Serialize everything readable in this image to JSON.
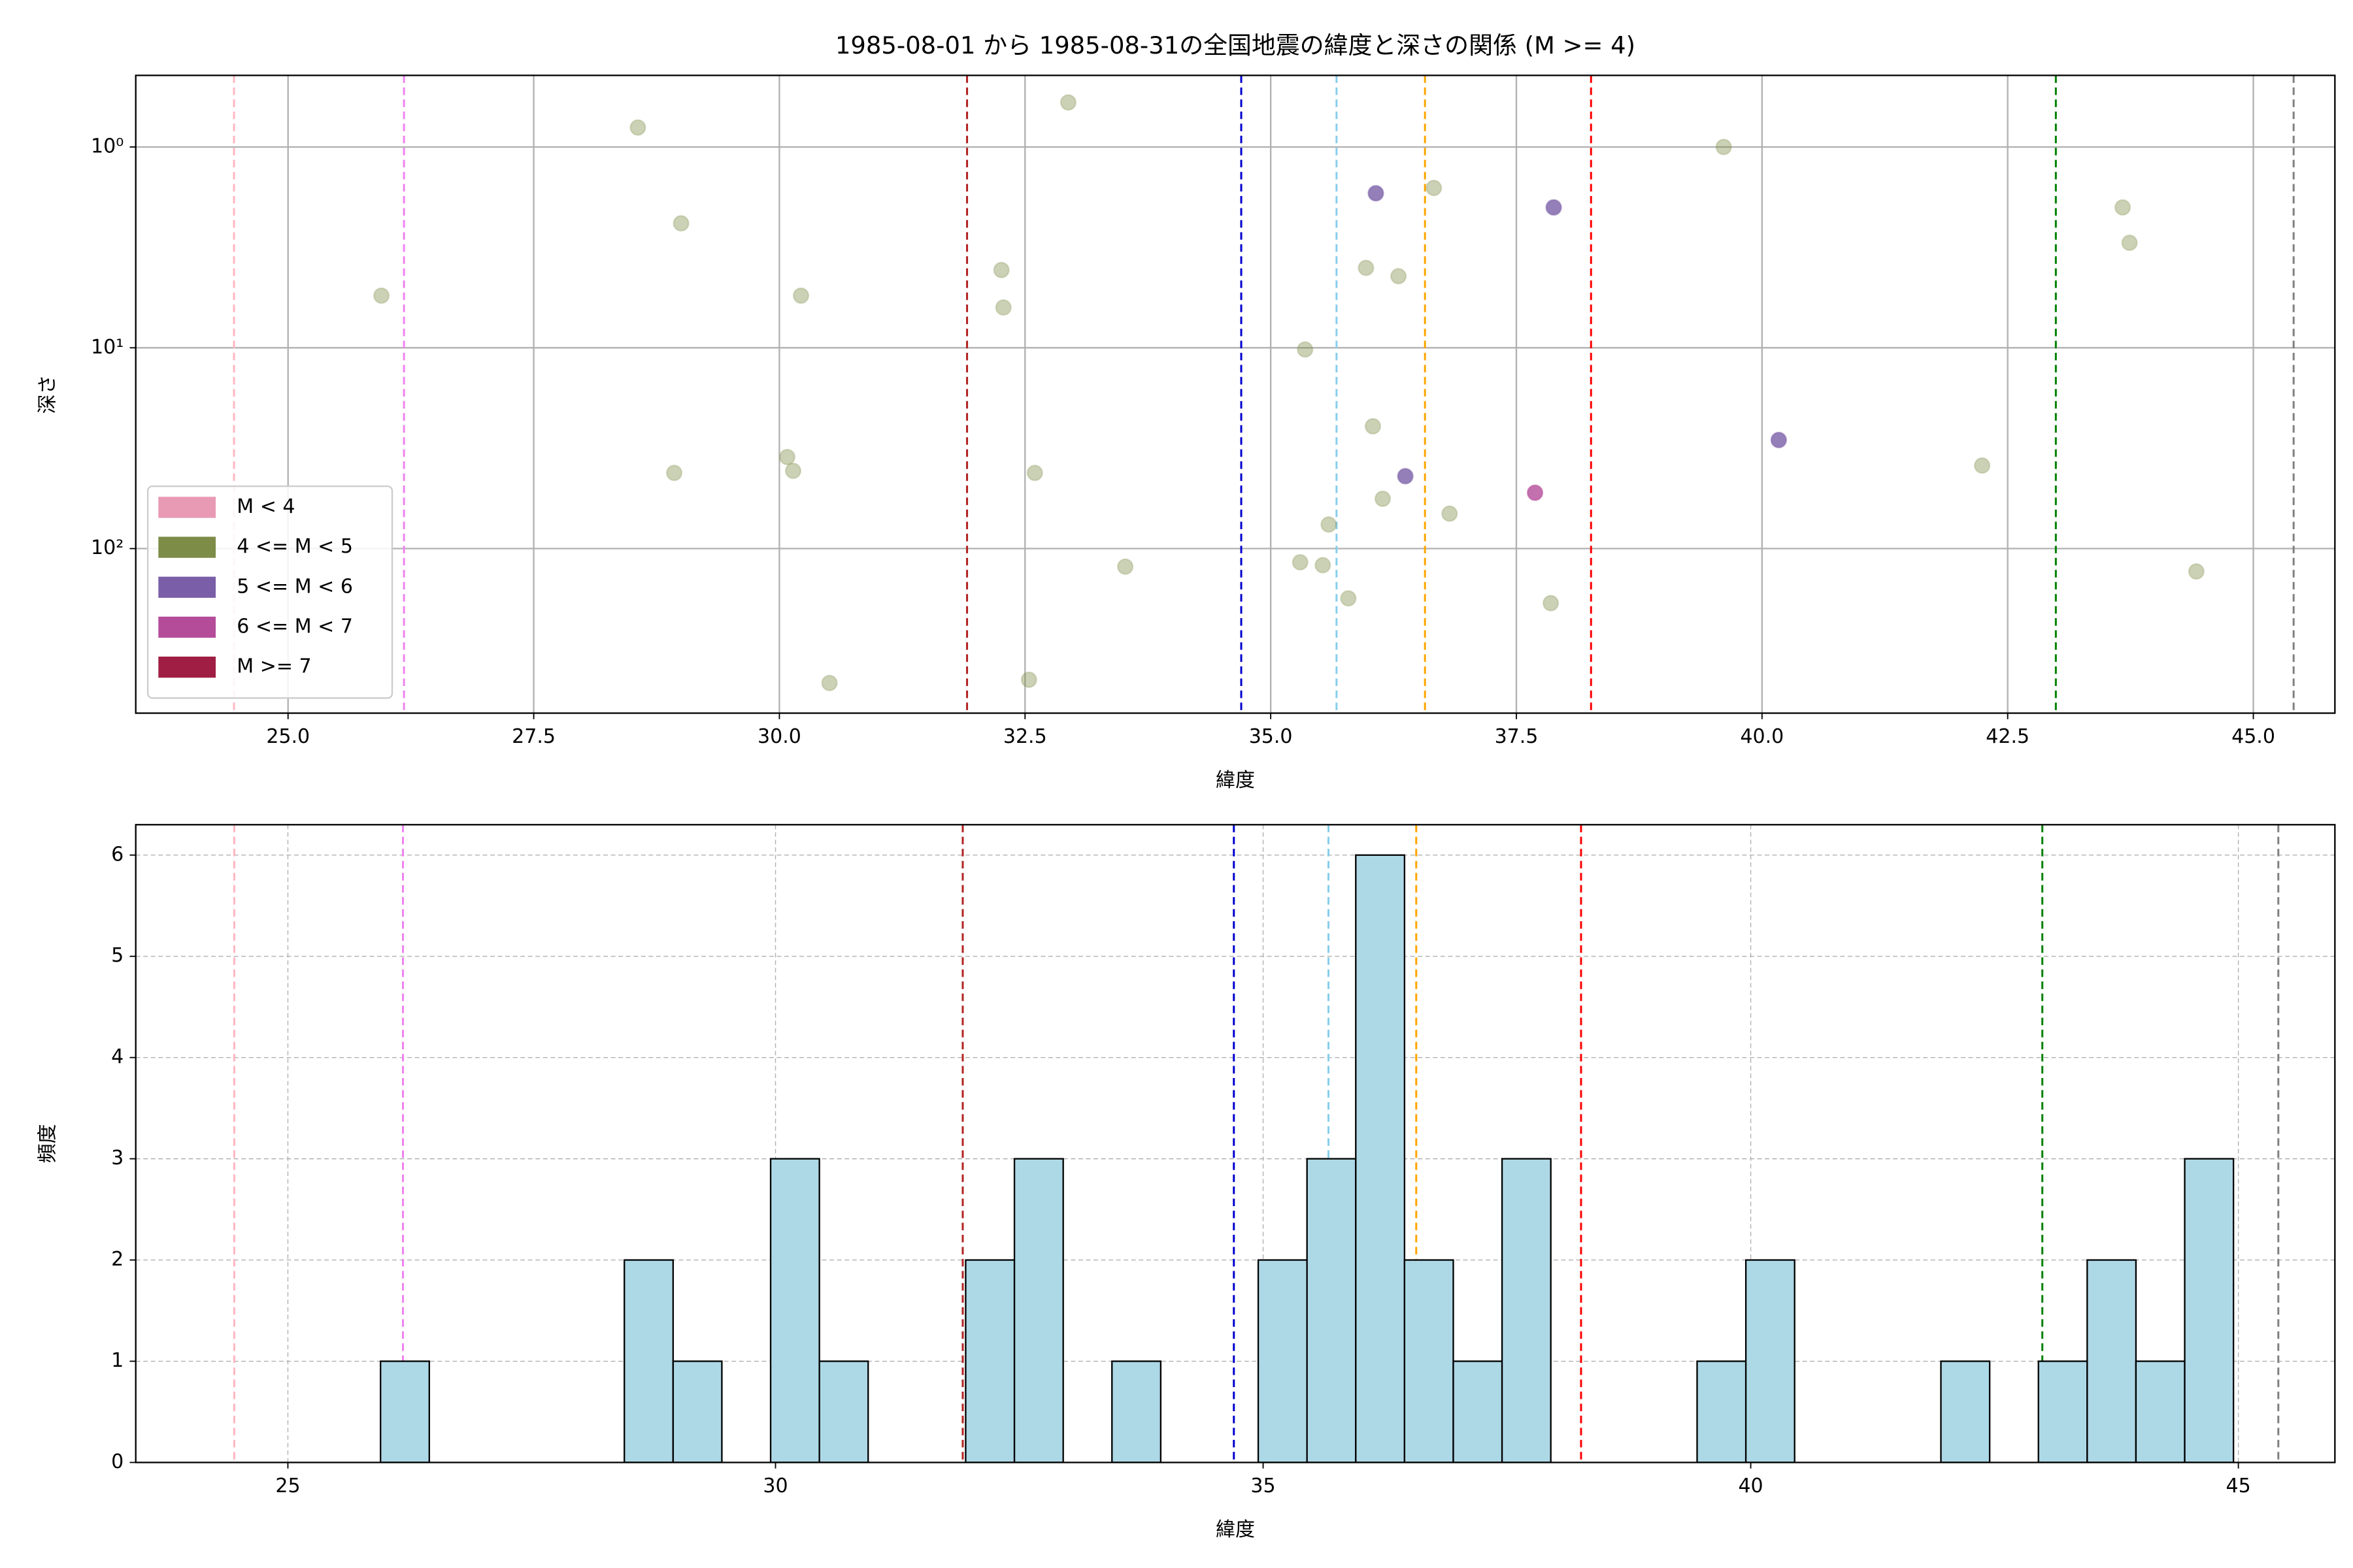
{
  "chart_data": [
    {
      "type": "scatter",
      "title": "1985-08-01 から 1985-08-31の全国地震の緯度と深さの関係 (M >= 4)",
      "x_label": "緯度",
      "y_label": "深さ",
      "xlim": [
        23.45,
        45.83
      ],
      "xticks": [
        {
          "value": 25,
          "label": "25.0"
        },
        27.5,
        {
          "value": 30,
          "label": "30.0"
        },
        32.5,
        {
          "value": 35,
          "label": "35.0"
        },
        37.5,
        {
          "value": 40,
          "label": "40.0"
        },
        42.5,
        {
          "value": 45,
          "label": "45.0"
        }
      ],
      "yscale": "log",
      "ylim": [
        660,
        0.44
      ],
      "yticks": [
        {
          "value": 1,
          "label": "10⁰"
        },
        {
          "value": 10,
          "label": "10¹"
        },
        {
          "value": 100,
          "label": "10²"
        }
      ],
      "grid": true,
      "grid_style": "solid",
      "legend": "lower left",
      "reference_lines": [
        {
          "x": 24.45,
          "color": "#ffb6c1"
        },
        {
          "x": 26.18,
          "color": "#ee82ee"
        },
        {
          "x": 31.91,
          "color": "#b22222"
        },
        {
          "x": 34.7,
          "color": "#0000cd"
        },
        {
          "x": 35.67,
          "color": "#87ceeb"
        },
        {
          "x": 36.57,
          "color": "#ffa500"
        },
        {
          "x": 38.26,
          "color": "#ff0000"
        },
        {
          "x": 42.99,
          "color": "#008000"
        },
        {
          "x": 45.41,
          "color": "#808080"
        }
      ],
      "series": [
        {
          "name": "M < 4",
          "color": "#e899b4",
          "alpha": 0.8,
          "x": [],
          "values": []
        },
        {
          "name": "4 <= M < 5",
          "color": "#7d8c47",
          "alpha": 0.4,
          "x": [
            25.95,
            28.56,
            29.0,
            28.93,
            30.08,
            30.14,
            30.22,
            30.51,
            32.26,
            32.28,
            32.94,
            32.6,
            32.54,
            33.52,
            35.35,
            35.97,
            36.3,
            36.66,
            36.04,
            36.14,
            35.59,
            36.82,
            35.3,
            35.53,
            35.79,
            37.85,
            39.61,
            42.24,
            43.67,
            43.74,
            44.42
          ],
          "values": [
            5.5,
            0.8,
            2.4,
            42,
            35,
            41,
            5.5,
            467,
            4.1,
            6.3,
            0.6,
            42,
            450,
            123,
            10.2,
            4.0,
            4.4,
            1.6,
            24.6,
            56.5,
            75.9,
            67,
            117,
            121,
            177,
            187,
            1.0,
            38.6,
            2.0,
            3.0,
            130
          ]
        },
        {
          "name": "5 <= M < 6",
          "color": "#7a5fa8",
          "alpha": 0.8,
          "x": [
            36.07,
            37.88,
            40.17,
            36.37
          ],
          "values": [
            1.7,
            2.0,
            28.8,
            43.6
          ]
        },
        {
          "name": "6 <= M < 7",
          "color": "#b44c9a",
          "alpha": 0.8,
          "x": [
            37.69
          ],
          "values": [
            52.7
          ]
        },
        {
          "name": "M >= 7",
          "color": "#a01e44",
          "alpha": 0.8,
          "x": [],
          "values": []
        }
      ]
    },
    {
      "type": "histogram",
      "x_label": "緯度",
      "y_label": "頻度",
      "xlim": [
        23.44,
        45.99
      ],
      "xticks": [
        25,
        30,
        35,
        40,
        45
      ],
      "ylim": [
        0,
        6.3
      ],
      "yticks": [
        0,
        1,
        2,
        3,
        4,
        5,
        6
      ],
      "grid": true,
      "grid_style": "dashed",
      "bar_color": "#add8e6",
      "edge_color": "#000000",
      "reference_lines": [
        {
          "x": 24.45,
          "color": "#ffb6c1"
        },
        {
          "x": 26.18,
          "color": "#ee82ee"
        },
        {
          "x": 31.92,
          "color": "#b22222"
        },
        {
          "x": 34.7,
          "color": "#0000cd"
        },
        {
          "x": 35.67,
          "color": "#87ceeb"
        },
        {
          "x": 36.57,
          "color": "#ffa500"
        },
        {
          "x": 38.26,
          "color": "#ff0000"
        },
        {
          "x": 42.99,
          "color": "#008000"
        },
        {
          "x": 45.41,
          "color": "#808080"
        }
      ],
      "bins": [
        25.95,
        26.45,
        26.95,
        27.45,
        27.95,
        28.45,
        28.95,
        29.45,
        29.95,
        30.45,
        30.95,
        31.45,
        31.95,
        32.45,
        32.95,
        33.45,
        33.95,
        34.45,
        34.95,
        35.45,
        35.95,
        36.45,
        36.95,
        37.45,
        37.95,
        38.45,
        38.95,
        39.45,
        39.95,
        40.45,
        40.95,
        41.45,
        41.95,
        42.45,
        42.95,
        43.45,
        43.95,
        44.45,
        44.95
      ],
      "counts": [
        1,
        0,
        0,
        0,
        0,
        2,
        1,
        0,
        3,
        1,
        0,
        0,
        2,
        3,
        0,
        1,
        0,
        0,
        2,
        3,
        6,
        2,
        1,
        3,
        0,
        0,
        0,
        1,
        2,
        0,
        0,
        0,
        1,
        0,
        1,
        2,
        1,
        3
      ]
    }
  ]
}
